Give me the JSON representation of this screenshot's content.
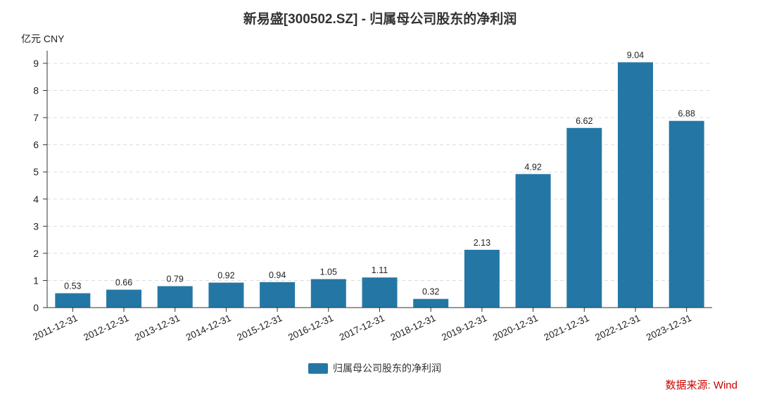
{
  "chart_data": {
    "type": "bar",
    "title": "新易盛[300502.SZ] - 归属母公司股东的净利润",
    "unit_label": "亿元  CNY",
    "categories": [
      "2011-12-31",
      "2012-12-31",
      "2013-12-31",
      "2014-12-31",
      "2015-12-31",
      "2016-12-31",
      "2017-12-31",
      "2018-12-31",
      "2019-12-31",
      "2020-12-31",
      "2021-12-31",
      "2022-12-31",
      "2023-12-31"
    ],
    "series": [
      {
        "name": "归属母公司股东的净利润",
        "values": [
          0.53,
          0.66,
          0.79,
          0.92,
          0.94,
          1.05,
          1.11,
          0.32,
          2.13,
          4.92,
          6.62,
          9.04,
          6.88
        ]
      }
    ],
    "data_labels": [
      "0.53",
      "0.66",
      "0.79",
      "0.92",
      "0.94",
      "1.05",
      "1.11",
      "0.32",
      "2.13",
      "4.92",
      "6.62",
      "9.04",
      "6.88"
    ],
    "ylim": [
      0,
      9
    ],
    "yticks": [
      0,
      1,
      2,
      3,
      4,
      5,
      6,
      7,
      8,
      9
    ],
    "grid": true,
    "legend_position": "bottom-center",
    "bar_color": "#2477a5",
    "source": "数据来源: Wind"
  }
}
